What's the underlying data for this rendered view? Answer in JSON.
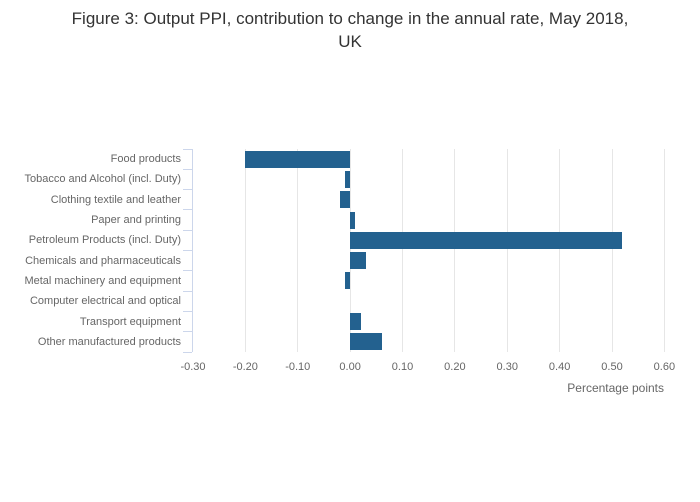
{
  "title_lines": [
    "Figure 3: Output PPI, contribution to change in the annual rate, May 2018,",
    "UK"
  ],
  "chart_data": {
    "type": "bar",
    "orientation": "horizontal",
    "title": "Figure 3: Output PPI, contribution to change in the annual rate, May 2018, UK",
    "categories": [
      "Food products",
      "Tobacco and Alcohol (incl. Duty)",
      "Clothing textile and leather",
      "Paper and printing",
      "Petroleum Products (incl. Duty)",
      "Chemicals and pharmaceuticals",
      "Metal machinery and equipment",
      "Computer electrical and optical",
      "Transport equipment",
      "Other manufactured products"
    ],
    "values": [
      -0.2,
      -0.01,
      -0.02,
      0.01,
      0.52,
      0.03,
      -0.01,
      0.0,
      0.02,
      0.06
    ],
    "xlabel": "Percentage points",
    "ylabel": "",
    "xlim": [
      -0.3,
      0.6
    ],
    "xticks": [
      -0.3,
      -0.2,
      -0.1,
      0.0,
      0.1,
      0.2,
      0.3,
      0.4,
      0.5,
      0.6
    ],
    "xtick_labels": [
      "-0.30",
      "-0.20",
      "-0.10",
      "0.00",
      "0.10",
      "0.20",
      "0.30",
      "0.40",
      "0.50",
      "0.60"
    ],
    "grid": true,
    "legend": "none",
    "bar_color": "#23618f",
    "gridline_color": "#e6e6e6",
    "axis_line_color": "#ccd6eb",
    "label_color": "#666666",
    "title_color": "#333333"
  }
}
